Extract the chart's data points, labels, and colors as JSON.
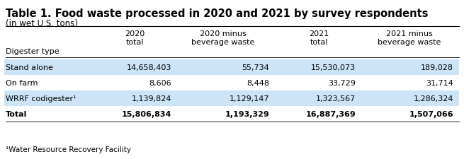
{
  "title": "Table 1. Food waste processed in 2020 and 2021 by survey respondents",
  "subtitle": "(in wet U.S. tons)",
  "footnote": "¹Water Resource Recovery Facility",
  "col_headers": [
    "",
    "2020\ntotal",
    "2020 minus\nbeverage waste",
    "2021\ntotal",
    "2021 minus\nbeverage waste"
  ],
  "row_label": "Digester type",
  "rows": [
    {
      "label": "Stand alone",
      "values": [
        "14,658,403",
        "55,734",
        "15,530,073",
        "189,028"
      ],
      "shaded": true,
      "bold": false
    },
    {
      "label": "On farm",
      "values": [
        "8,606",
        "8,448",
        "33,729",
        "31,714"
      ],
      "shaded": false,
      "bold": false
    },
    {
      "label": "WRRF codigester¹",
      "values": [
        "1,139,824",
        "1,129,147",
        "1,323,567",
        "1,286,324"
      ],
      "shaded": true,
      "bold": false
    },
    {
      "label": "Total",
      "values": [
        "15,806,834",
        "1,193,329",
        "16,887,369",
        "1,507,066"
      ],
      "shaded": false,
      "bold": true
    }
  ],
  "shade_color": "#cce4f7",
  "background_color": "#ffffff",
  "title_fontsize": 10.5,
  "subtitle_fontsize": 8.5,
  "header_fontsize": 8.0,
  "cell_fontsize": 8.0,
  "footnote_fontsize": 7.5
}
